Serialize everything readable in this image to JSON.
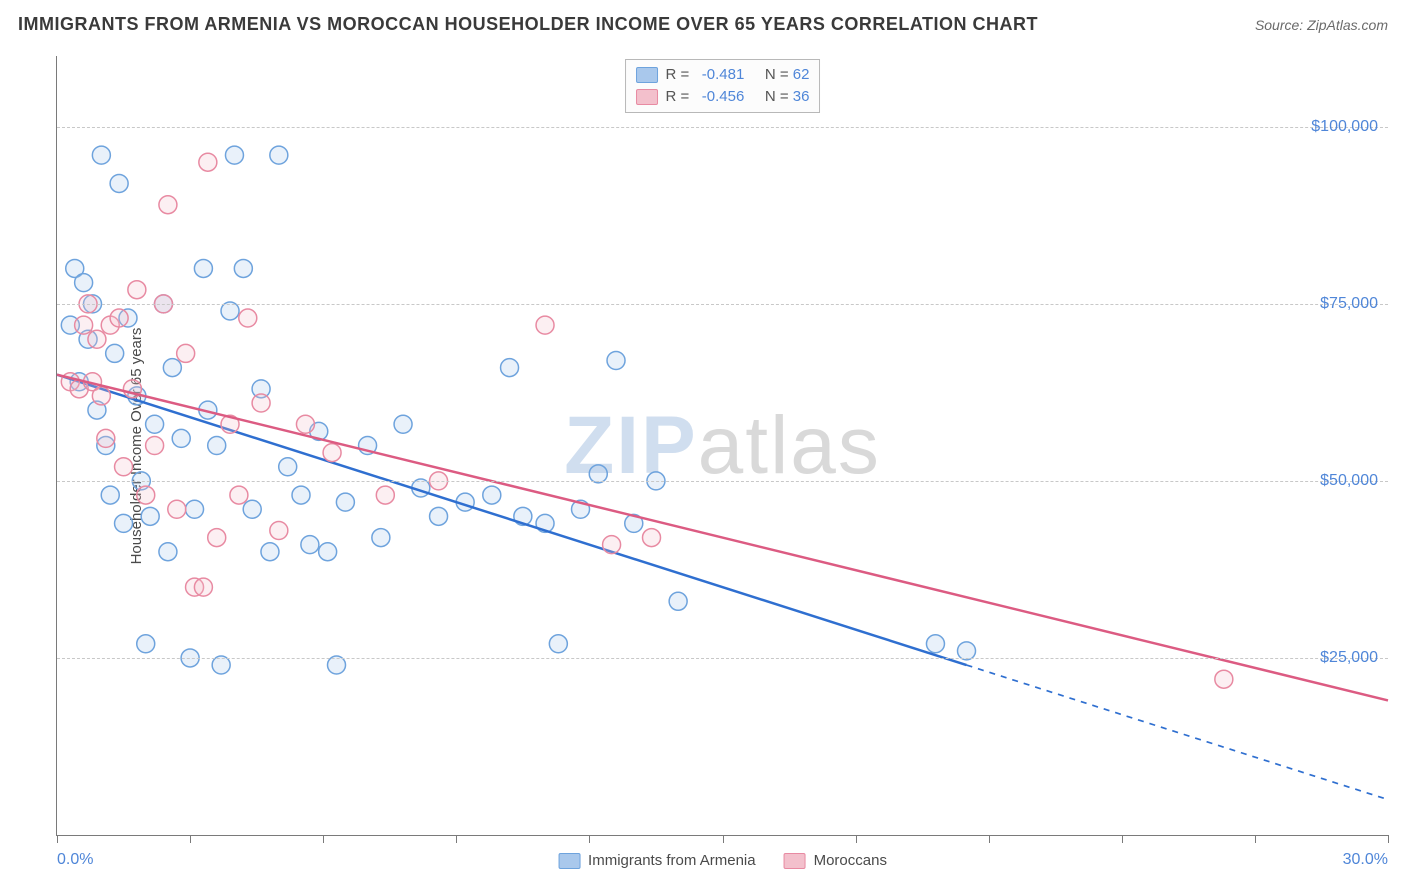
{
  "title": "IMMIGRANTS FROM ARMENIA VS MOROCCAN HOUSEHOLDER INCOME OVER 65 YEARS CORRELATION CHART",
  "source_label": "Source: ",
  "source_name": "ZipAtlas.com",
  "watermark_zip": "ZIP",
  "watermark_atlas": "atlas",
  "ylabel": "Householder Income Over 65 years",
  "chart": {
    "type": "scatter",
    "xlim": [
      0.0,
      30.0
    ],
    "ylim": [
      0,
      110000
    ],
    "background_color": "#ffffff",
    "grid_color": "#c8c8c8",
    "axis_color": "#7a7a7a",
    "y_ticks": [
      25000,
      50000,
      75000,
      100000
    ],
    "y_tick_labels": [
      "$25,000",
      "$50,000",
      "$75,000",
      "$100,000"
    ],
    "x_ticks": [
      0,
      3,
      6,
      9,
      12,
      15,
      18,
      21,
      24,
      27,
      30
    ],
    "x_axis_min_label": "0.0%",
    "x_axis_max_label": "30.0%",
    "marker_radius": 9,
    "marker_stroke_width": 1.5,
    "marker_fill_opacity": 0.25,
    "trend_line_width": 2.5,
    "tick_label_color": "#4f86d8",
    "label_fontsize": 15
  },
  "series": [
    {
      "name": "Immigrants from Armenia",
      "color_fill": "#a9c8ec",
      "color_stroke": "#6ea3dd",
      "trend_color": "#2f6fd0",
      "r": "-0.481",
      "n": "62",
      "trend": {
        "x1": 0.0,
        "y1": 65000,
        "x2": 30.0,
        "y2": 5000,
        "solid_until_x": 20.5
      },
      "points": [
        [
          0.3,
          72000
        ],
        [
          0.4,
          80000
        ],
        [
          0.5,
          64000
        ],
        [
          0.6,
          78000
        ],
        [
          0.7,
          70000
        ],
        [
          0.8,
          75000
        ],
        [
          0.9,
          60000
        ],
        [
          1.0,
          96000
        ],
        [
          1.1,
          55000
        ],
        [
          1.2,
          48000
        ],
        [
          1.3,
          68000
        ],
        [
          1.4,
          92000
        ],
        [
          1.5,
          44000
        ],
        [
          1.6,
          73000
        ],
        [
          1.8,
          62000
        ],
        [
          1.9,
          50000
        ],
        [
          2.0,
          27000
        ],
        [
          2.1,
          45000
        ],
        [
          2.2,
          58000
        ],
        [
          2.4,
          75000
        ],
        [
          2.5,
          40000
        ],
        [
          2.6,
          66000
        ],
        [
          2.8,
          56000
        ],
        [
          3.0,
          25000
        ],
        [
          3.1,
          46000
        ],
        [
          3.3,
          80000
        ],
        [
          3.4,
          60000
        ],
        [
          3.6,
          55000
        ],
        [
          3.7,
          24000
        ],
        [
          3.9,
          74000
        ],
        [
          4.0,
          96000
        ],
        [
          4.2,
          80000
        ],
        [
          4.4,
          46000
        ],
        [
          4.6,
          63000
        ],
        [
          4.8,
          40000
        ],
        [
          5.0,
          96000
        ],
        [
          5.2,
          52000
        ],
        [
          5.5,
          48000
        ],
        [
          5.7,
          41000
        ],
        [
          5.9,
          57000
        ],
        [
          6.1,
          40000
        ],
        [
          6.3,
          24000
        ],
        [
          6.5,
          47000
        ],
        [
          7.0,
          55000
        ],
        [
          7.3,
          42000
        ],
        [
          7.8,
          58000
        ],
        [
          8.2,
          49000
        ],
        [
          8.6,
          45000
        ],
        [
          9.2,
          47000
        ],
        [
          9.8,
          48000
        ],
        [
          10.2,
          66000
        ],
        [
          10.5,
          45000
        ],
        [
          11.0,
          44000
        ],
        [
          11.3,
          27000
        ],
        [
          11.8,
          46000
        ],
        [
          12.2,
          51000
        ],
        [
          12.6,
          67000
        ],
        [
          13.0,
          44000
        ],
        [
          13.5,
          50000
        ],
        [
          14.0,
          33000
        ],
        [
          19.8,
          27000
        ],
        [
          20.5,
          26000
        ]
      ]
    },
    {
      "name": "Moroccans",
      "color_fill": "#f3c0cc",
      "color_stroke": "#e88aa2",
      "trend_color": "#dc5b82",
      "r": "-0.456",
      "n": "36",
      "trend": {
        "x1": 0.0,
        "y1": 65000,
        "x2": 30.0,
        "y2": 19000,
        "solid_until_x": 30.0
      },
      "points": [
        [
          0.3,
          64000
        ],
        [
          0.5,
          63000
        ],
        [
          0.6,
          72000
        ],
        [
          0.7,
          75000
        ],
        [
          0.8,
          64000
        ],
        [
          0.9,
          70000
        ],
        [
          1.0,
          62000
        ],
        [
          1.1,
          56000
        ],
        [
          1.2,
          72000
        ],
        [
          1.4,
          73000
        ],
        [
          1.5,
          52000
        ],
        [
          1.7,
          63000
        ],
        [
          1.8,
          77000
        ],
        [
          2.0,
          48000
        ],
        [
          2.2,
          55000
        ],
        [
          2.4,
          75000
        ],
        [
          2.5,
          89000
        ],
        [
          2.7,
          46000
        ],
        [
          2.9,
          68000
        ],
        [
          3.1,
          35000
        ],
        [
          3.3,
          35000
        ],
        [
          3.4,
          95000
        ],
        [
          3.6,
          42000
        ],
        [
          3.9,
          58000
        ],
        [
          4.1,
          48000
        ],
        [
          4.3,
          73000
        ],
        [
          4.6,
          61000
        ],
        [
          5.0,
          43000
        ],
        [
          5.6,
          58000
        ],
        [
          6.2,
          54000
        ],
        [
          7.4,
          48000
        ],
        [
          8.6,
          50000
        ],
        [
          11.0,
          72000
        ],
        [
          12.5,
          41000
        ],
        [
          13.4,
          42000
        ],
        [
          26.3,
          22000
        ]
      ]
    }
  ],
  "legend_top": {
    "r_label": "R = ",
    "n_label": "N = "
  }
}
